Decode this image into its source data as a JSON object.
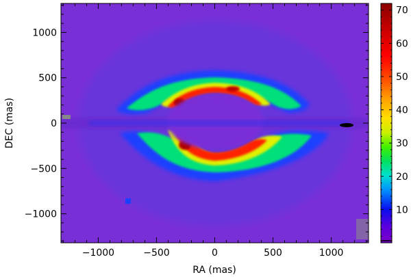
{
  "chart_data": {
    "type": "heatmap",
    "title": "",
    "xlabel": "RA (mas)",
    "ylabel": "DEC (mas)",
    "xlim": [
      -1320,
      1320
    ],
    "ylim": [
      -1320,
      1320
    ],
    "x_ticks": [
      -1000,
      -500,
      0,
      500,
      1000
    ],
    "x_tick_labels": [
      "−1000",
      "−500",
      "0",
      "500",
      "1000"
    ],
    "y_ticks": [
      -1000,
      -500,
      0,
      500,
      1000
    ],
    "y_tick_labels": [
      "−1000",
      "−500",
      "0",
      "500",
      "1000"
    ],
    "colorbar": {
      "range": [
        0,
        72
      ],
      "ticks": [
        10,
        20,
        30,
        40,
        50,
        60,
        70
      ],
      "tick_labels": [
        "10",
        "20",
        "30",
        "40",
        "50",
        "60",
        "70"
      ],
      "colormap": "rainbow"
    },
    "features": {
      "description_free": true,
      "ring_center": [
        0,
        0
      ],
      "ring_outer_radius_x": 420,
      "ring_outer_radius_y": 180,
      "peak_value": 70,
      "background_value": 3
    }
  }
}
